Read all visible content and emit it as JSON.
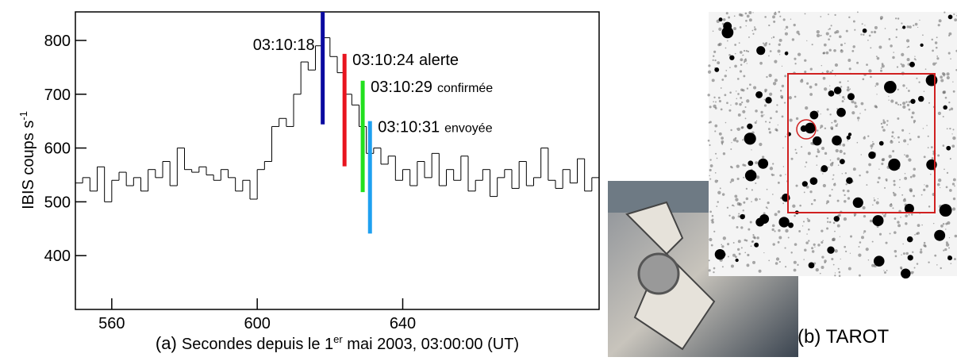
{
  "chart_data": {
    "type": "histogram",
    "bins": [
      550,
      552,
      554,
      556,
      558,
      560,
      562,
      564,
      566,
      568,
      570,
      572,
      574,
      576,
      578,
      580,
      582,
      584,
      586,
      588,
      590,
      592,
      594,
      596,
      598,
      600,
      602,
      604,
      606,
      608,
      610,
      612,
      614,
      616,
      618,
      620,
      622,
      624,
      626,
      628,
      630,
      632,
      634,
      636,
      638,
      640,
      642,
      644,
      646,
      648,
      650,
      652,
      654,
      656,
      658,
      660,
      662,
      664,
      666,
      668,
      670,
      672,
      674,
      676,
      678,
      680,
      682,
      684,
      686,
      688,
      690,
      692,
      694
    ],
    "values": [
      535,
      545,
      520,
      565,
      500,
      540,
      555,
      530,
      545,
      520,
      560,
      545,
      575,
      530,
      600,
      560,
      555,
      565,
      550,
      540,
      560,
      545,
      520,
      540,
      505,
      560,
      575,
      640,
      655,
      640,
      700,
      760,
      745,
      790,
      805,
      770,
      740,
      700,
      680,
      640,
      590,
      600,
      570,
      585,
      540,
      560,
      530,
      575,
      545,
      590,
      530,
      560,
      540,
      585,
      520,
      540,
      560,
      510,
      545,
      560,
      525,
      575,
      530,
      545,
      600,
      540,
      525,
      560,
      535,
      580,
      520,
      545
    ],
    "color": "#000000",
    "xlim": [
      550,
      694
    ],
    "ylim": [
      300,
      853
    ],
    "xticks": [
      560,
      600,
      640
    ],
    "yticks": [
      400,
      500,
      600,
      700,
      800
    ],
    "y_label": [
      "IBIS coups s",
      "-1"
    ],
    "x_label": [
      "(a) ",
      "Secondes depuis le 1",
      "er",
      " mai 2003, 03:00:00 (UT)"
    ],
    "annotations": [
      {
        "time": "03:10:18",
        "x": 618,
        "y1": 644,
        "y2": 853,
        "color": "#0a0aa0"
      },
      {
        "time": "03:10:24",
        "word": "alerte",
        "x": 624,
        "y1": 566,
        "y2": 775,
        "color": "#e8141e"
      },
      {
        "time": "03:10:29",
        "word": "confirmée",
        "x": 629,
        "y1": 518,
        "y2": 725,
        "color": "#22e01e"
      },
      {
        "time": "03:10:31",
        "word": "envoyée",
        "x": 631,
        "y1": 441,
        "y2": 650,
        "color": "#1ea0f0"
      }
    ]
  },
  "image_caption": "(b) TAROT"
}
